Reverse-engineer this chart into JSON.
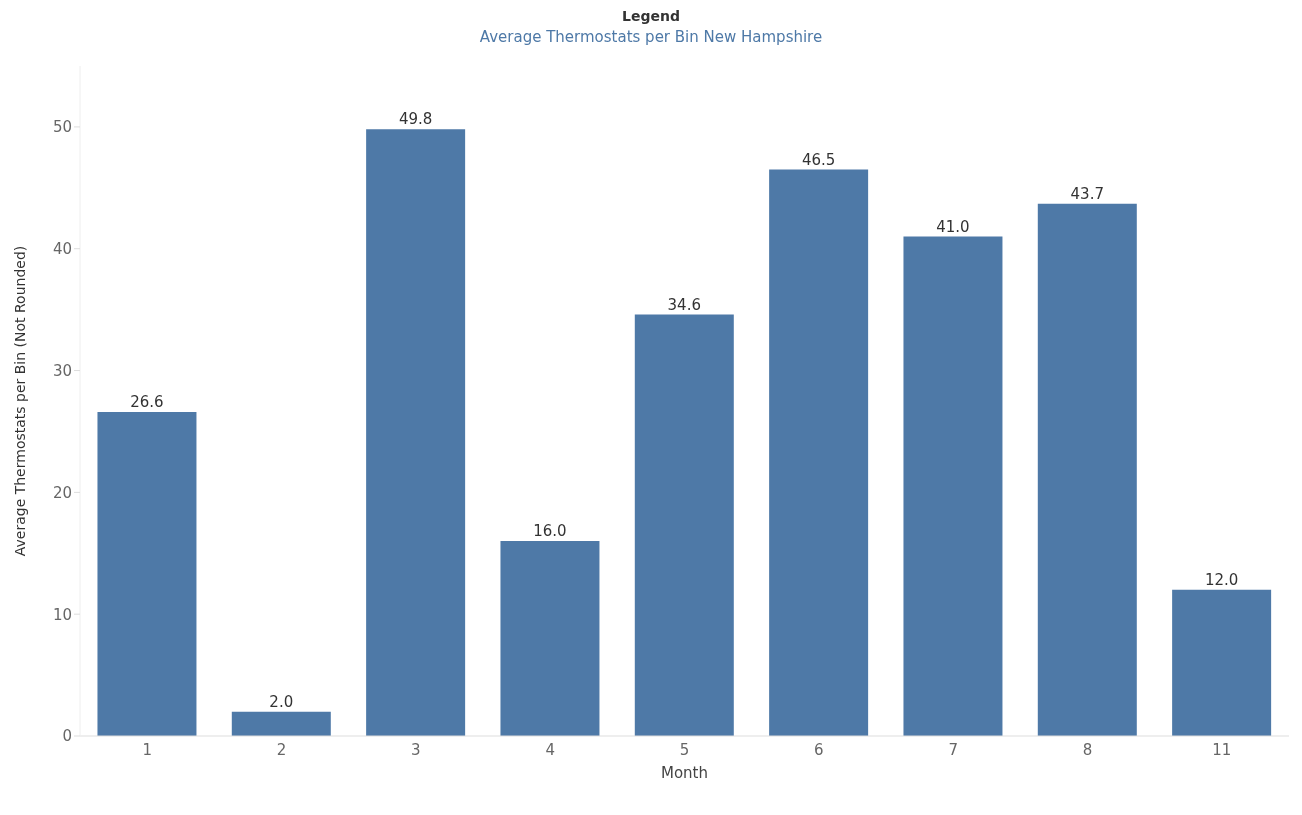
{
  "chart_data": {
    "type": "bar",
    "title": "Legend",
    "subtitle": "Average Thermostats per Bin New Hampshire",
    "xlabel": "Month",
    "ylabel": "Average Thermostats per Bin (Not Rounded)",
    "categories": [
      "1",
      "2",
      "3",
      "4",
      "5",
      "6",
      "7",
      "8",
      "11"
    ],
    "values": [
      26.6,
      2.0,
      49.8,
      16.0,
      34.6,
      46.5,
      41.0,
      43.7,
      12.0
    ],
    "value_labels": [
      "26.6",
      "2.0",
      "49.8",
      "16.0",
      "34.6",
      "46.5",
      "41.0",
      "43.7",
      "12.0"
    ],
    "color": "#4e79a7",
    "ylim": [
      0,
      55
    ],
    "yticks": [
      0,
      10,
      20,
      30,
      40,
      50
    ],
    "grid": false
  }
}
